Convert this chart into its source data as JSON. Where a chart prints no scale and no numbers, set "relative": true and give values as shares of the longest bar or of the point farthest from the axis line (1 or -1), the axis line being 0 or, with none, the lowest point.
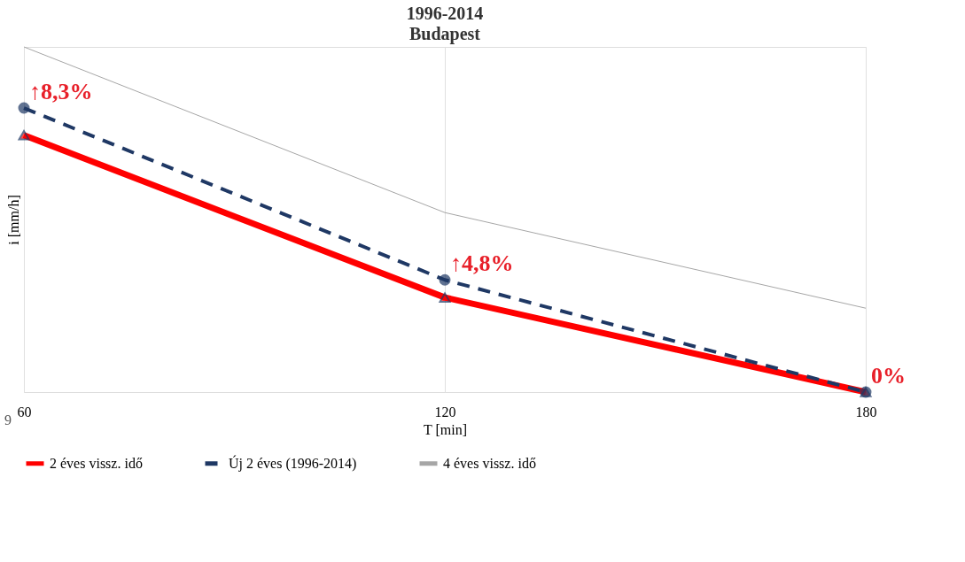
{
  "chart_data": {
    "type": "line",
    "title": "1996-2014",
    "subtitle": "Budapest",
    "xlabel": "T [min]",
    "ylabel": "i [mm/h]",
    "x": [
      60,
      120,
      180
    ],
    "xlim": [
      60,
      180
    ],
    "xticks": [
      60,
      120,
      180
    ],
    "relative": true,
    "grid": "x",
    "legend": "bottom",
    "series": [
      {
        "name": "2 éves vissz. idő",
        "color": "#ff0000",
        "values": [
          0.744,
          0.274,
          0
        ],
        "marker": "triangle",
        "line_style": "solid"
      },
      {
        "name": "Új 2 éves (1996-2014)",
        "color": "#1f3864",
        "values": [
          0.823,
          0.325,
          0
        ],
        "marker": "circle",
        "line_style": "dashed"
      },
      {
        "name": "4 éves vissz. idő",
        "color": "#a6a6a6",
        "values": [
          1,
          0.52,
          0.243
        ],
        "marker": "none",
        "line_style": "solid"
      }
    ],
    "annotations": [
      {
        "text": "↑8,3%",
        "x": 60,
        "y": 0.823
      },
      {
        "text": "↑4,8%",
        "x": 120,
        "y": 0.325
      },
      {
        "text": "0%",
        "x": 180,
        "y": 0
      },
      "9"
    ]
  }
}
